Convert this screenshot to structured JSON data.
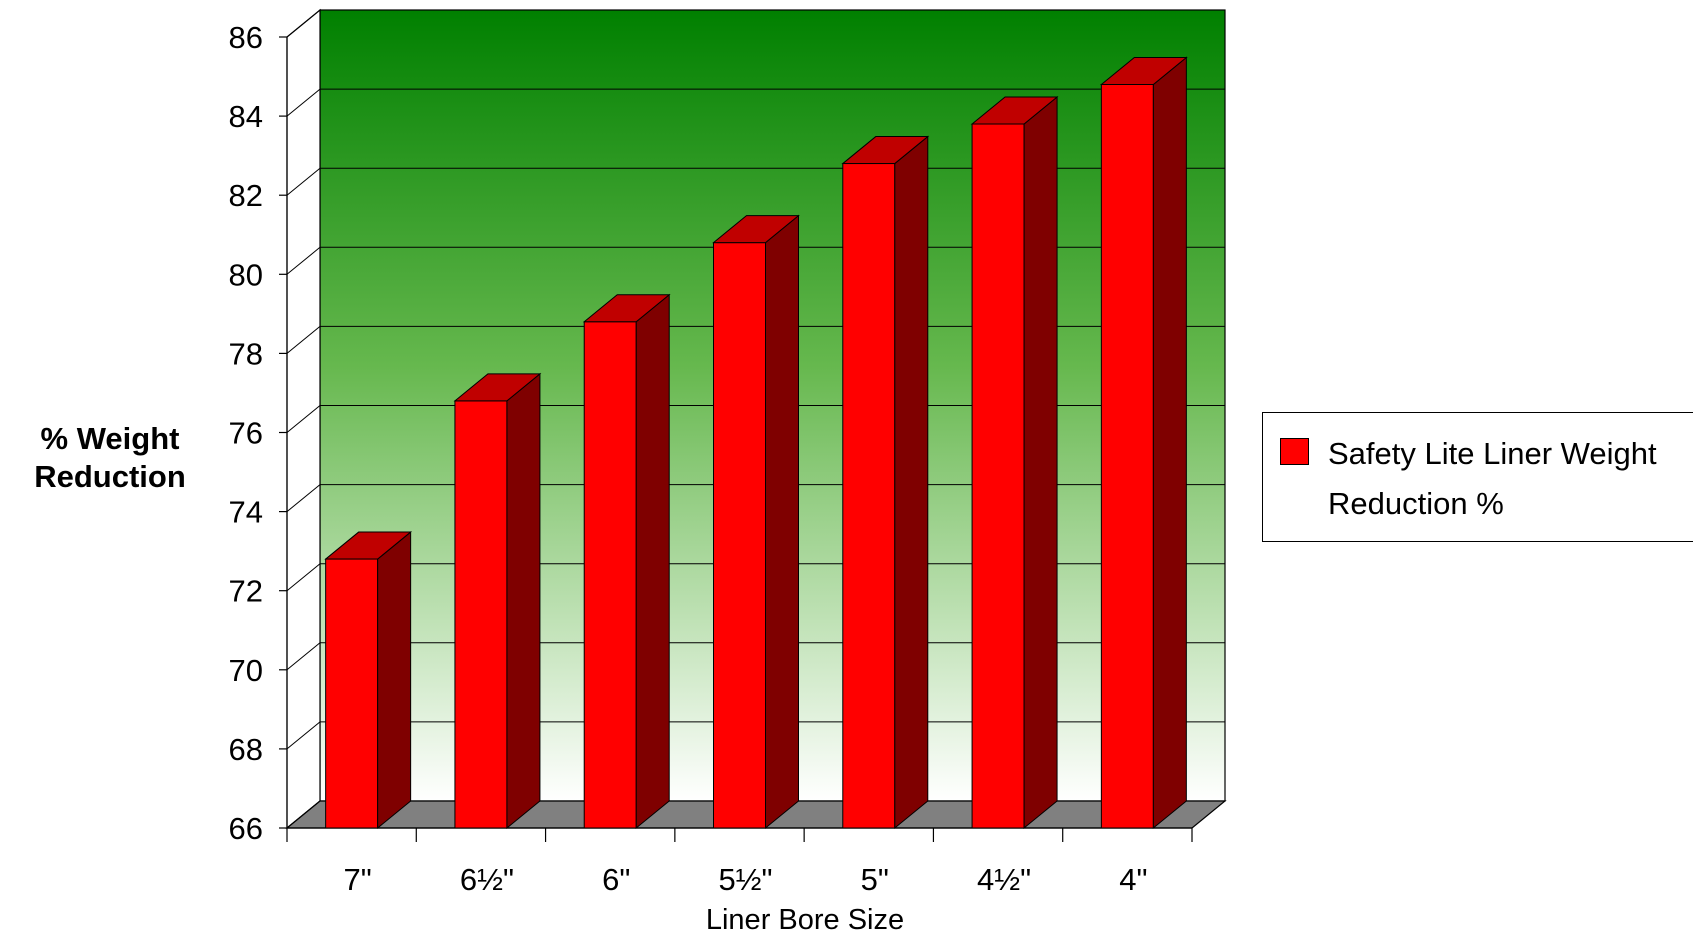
{
  "chart_data": {
    "type": "bar",
    "categories": [
      "7\"",
      "6½\"",
      "6\"",
      "5½\"",
      "5\"",
      "4½\"",
      "4\""
    ],
    "series": [
      {
        "name": "Safety Lite Liner Weight Reduction %",
        "values": [
          72.8,
          76.8,
          78.8,
          80.8,
          82.8,
          83.8,
          84.8
        ]
      }
    ],
    "xlabel": "Liner Bore Size",
    "ylabel": "% Weight Reduction",
    "ylim": [
      66,
      86
    ],
    "yticks": [
      "66",
      "68",
      "70",
      "72",
      "74",
      "76",
      "78",
      "80",
      "82",
      "84",
      "86"
    ],
    "grid": true,
    "legend": "right",
    "colors": {
      "bar_front": "#ff0000",
      "bar_side": "#7f0000",
      "bar_top": "#c00000",
      "wall_top": "#008000",
      "wall_bottom": "#ffffff",
      "floor": "#808080"
    }
  }
}
